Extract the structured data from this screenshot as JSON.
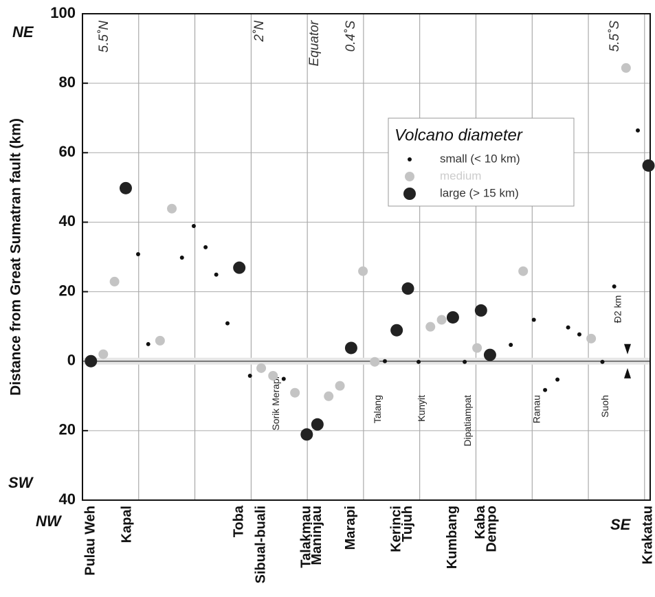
{
  "chart_data": {
    "type": "scatter",
    "y_label": "Distance from Great Sumatran fault (km)",
    "corner_labels": {
      "ne": "NE",
      "sw": "SW",
      "nw": "NW",
      "se": "SE"
    },
    "ylim": [
      -40,
      100
    ],
    "yticks": [
      {
        "value": -40,
        "label": "40"
      },
      {
        "value": -20,
        "label": "20"
      },
      0,
      20,
      40,
      60,
      80,
      100
    ],
    "xlim": [
      0,
      10.1
    ],
    "xticks": [
      0,
      1,
      2,
      3,
      4,
      5,
      6,
      7,
      8,
      9,
      10
    ],
    "grid": true,
    "legend": {
      "title": "Volcano diameter",
      "position": "upper right"
    },
    "series": [
      {
        "name": "small (< 10 km)",
        "color": "#111111",
        "size": 3,
        "x": [
          0.99,
          1.17,
          1.77,
          1.98,
          2.19,
          2.38,
          2.58,
          2.98,
          3.58,
          5.38,
          5.98,
          6.8,
          7.62,
          8.03,
          8.23,
          8.45,
          8.64,
          8.84,
          9.25,
          9.46,
          9.88
        ],
        "values": [
          30.8,
          4.9,
          29.8,
          38.9,
          32.8,
          24.9,
          10.9,
          -4.2,
          -5.1,
          0,
          -0.2,
          -0.2,
          4.7,
          11.9,
          -8.3,
          -5.3,
          9.7,
          7.7,
          -0.2,
          21.5,
          66.4
        ]
      },
      {
        "name": "medium",
        "color": "#c4c4c4",
        "size": 7,
        "x": [
          0.37,
          0.57,
          1.38,
          1.59,
          3.18,
          3.39,
          3.78,
          4.38,
          4.58,
          4.99,
          5.2,
          6.19,
          6.39,
          7.02,
          7.84,
          9.05,
          9.67
        ],
        "values": [
          2.0,
          22.9,
          5.9,
          43.9,
          -2.0,
          -4.2,
          -9.1,
          -10.1,
          -7.1,
          25.9,
          -0.2,
          9.9,
          11.9,
          3.8,
          25.9,
          6.5,
          84.4
        ]
      },
      {
        "name": "large (> 15 km)",
        "color": "#222222",
        "size": 9,
        "x": [
          0.15,
          0.77,
          2.79,
          3.99,
          4.18,
          4.78,
          5.59,
          5.79,
          6.59,
          7.09,
          7.25,
          10.07
        ],
        "values": [
          0,
          49.8,
          26.9,
          -21.1,
          -18.2,
          3.8,
          8.9,
          20.9,
          12.6,
          14.6,
          1.8,
          56.3
        ]
      }
    ],
    "volcano_labels": [
      {
        "text": "Pulau Weh",
        "x": 0.15
      },
      {
        "text": "Kapal",
        "x": 0.8
      },
      {
        "text": "Toba",
        "x": 2.79
      },
      {
        "text": "Sibual-buali",
        "x": 3.18
      },
      {
        "text": "Talakmau",
        "x": 3.99
      },
      {
        "text": "Maninjau",
        "x": 4.18
      },
      {
        "text": "Marapi",
        "x": 4.78
      },
      {
        "text": "Kerinci",
        "x": 5.59
      },
      {
        "text": "Tujuh",
        "x": 5.79
      },
      {
        "text": "Kumbang",
        "x": 6.59
      },
      {
        "text": "Kaba",
        "x": 7.09
      },
      {
        "text": "Dempo",
        "x": 7.29
      },
      {
        "text": "Krakatau",
        "x": 10.07
      }
    ],
    "inner_labels": [
      {
        "text": "Sorik Merapi",
        "x": 3.39
      },
      {
        "text": "Talang",
        "x": 5.2
      },
      {
        "text": "Kunyit",
        "x": 5.98
      },
      {
        "text": "Dipatiampat",
        "x": 6.8
      },
      {
        "text": "Ranau",
        "x": 8.03
      },
      {
        "text": "Suoh",
        "x": 9.25
      }
    ],
    "latitude_labels": [
      {
        "text": "5.5˚N",
        "x": 0.32
      },
      {
        "text": "2˚N",
        "x": 3.08
      },
      {
        "text": "Equator",
        "x": 4.06
      },
      {
        "text": "0.4˚S",
        "x": 4.71
      },
      {
        "text": "5.5˚S",
        "x": 9.4
      }
    ],
    "annotation": "Ð2 km"
  }
}
